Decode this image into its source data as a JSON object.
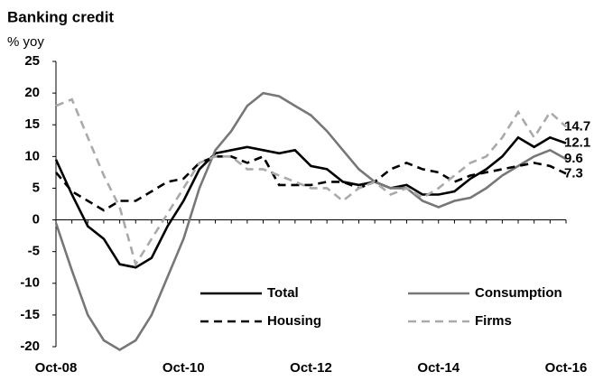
{
  "chart_data": {
    "type": "line",
    "title": "Banking credit",
    "subtitle": "% yoy",
    "categories": [
      "Oct-08",
      null,
      null,
      null,
      null,
      null,
      null,
      null,
      "Oct-10",
      null,
      null,
      null,
      null,
      null,
      null,
      null,
      "Oct-12",
      null,
      null,
      null,
      null,
      null,
      null,
      null,
      "Oct-14",
      null,
      null,
      null,
      null,
      null,
      null,
      null,
      "Oct-16"
    ],
    "series": [
      {
        "name": "Total",
        "color": "#000000",
        "dash": false,
        "values": [
          9.5,
          4,
          -1,
          -3,
          -7,
          -7.5,
          -6,
          -1,
          3,
          8,
          10.5,
          11,
          11.5,
          11,
          10.5,
          11,
          8.5,
          8,
          6,
          5.5,
          6,
          5,
          5.5,
          4,
          4,
          4.5,
          6.5,
          8,
          10,
          13,
          11.5,
          13,
          12.1
        ]
      },
      {
        "name": "Consumption",
        "color": "#777777",
        "dash": false,
        "values": [
          -0.5,
          -8,
          -15,
          -19,
          -20.5,
          -19,
          -15,
          -9,
          -3,
          5,
          11,
          14,
          18,
          20,
          19.5,
          18,
          16.5,
          14,
          11,
          8,
          6,
          5,
          5,
          3,
          2,
          3,
          3.5,
          5,
          7,
          8.5,
          10,
          11,
          9.6
        ]
      },
      {
        "name": "Housing",
        "color": "#000000",
        "dash": true,
        "values": [
          7.5,
          4.5,
          3,
          1.5,
          3,
          3,
          4.5,
          6,
          6.5,
          9,
          10,
          10,
          9,
          10,
          5.5,
          5.5,
          5.5,
          6,
          6,
          5,
          6,
          8,
          9,
          8,
          7.5,
          6,
          7,
          7.5,
          8,
          8.5,
          9,
          8.5,
          7.3
        ]
      },
      {
        "name": "Firms",
        "color": "#aaaaaa",
        "dash": true,
        "values": [
          18,
          19,
          13,
          7,
          2,
          -7,
          -3,
          1,
          5,
          9,
          10,
          10,
          8,
          8,
          7,
          6,
          5,
          5,
          3,
          5,
          6,
          4,
          5,
          3.5,
          5,
          7,
          9,
          10,
          13,
          17,
          13,
          17,
          14.7
        ]
      }
    ],
    "ylim": [
      -20,
      25
    ],
    "yticks": [
      -20,
      -15,
      -10,
      -5,
      0,
      5,
      10,
      15,
      20,
      25
    ],
    "grid": false,
    "legend": "bottom-right"
  }
}
